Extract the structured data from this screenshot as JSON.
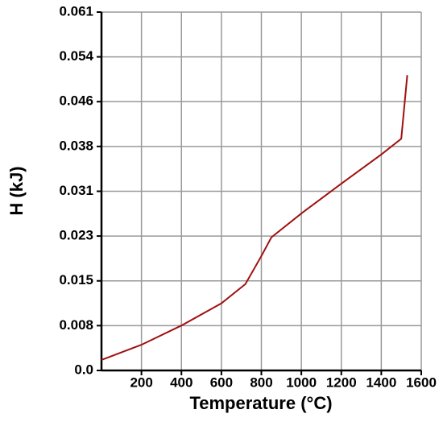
{
  "chart_data": {
    "type": "line",
    "x_label": "Temperature (°C)",
    "y_label": "H (kJ)",
    "x": [
      0,
      200,
      400,
      600,
      720,
      800,
      850,
      1000,
      1200,
      1400,
      1500,
      1530
    ],
    "series": [
      {
        "name": "H",
        "color": "#a01010",
        "values": [
          0.0018,
          0.0044,
          0.0077,
          0.0115,
          0.0148,
          0.0196,
          0.0228,
          0.0269,
          0.032,
          0.037,
          0.0397,
          0.0506
        ]
      }
    ],
    "xlim": [
      0,
      1600
    ],
    "xticks": [
      200,
      400,
      600,
      800,
      1000,
      1200,
      1400,
      1600
    ],
    "ylim": [
      0,
      0.0614
    ],
    "yticks": [
      {
        "value": 0,
        "label": "0.0"
      },
      {
        "value": 0.00768,
        "label": "0.008"
      },
      {
        "value": 0.01535,
        "label": "0.015"
      },
      {
        "value": 0.02303,
        "label": "0.023"
      },
      {
        "value": 0.0307,
        "label": "0.031"
      },
      {
        "value": 0.03838,
        "label": "0.038"
      },
      {
        "value": 0.04605,
        "label": "0.046"
      },
      {
        "value": 0.05373,
        "label": "0.054"
      },
      {
        "value": 0.0614,
        "label": "0.061"
      }
    ],
    "grid": true
  }
}
